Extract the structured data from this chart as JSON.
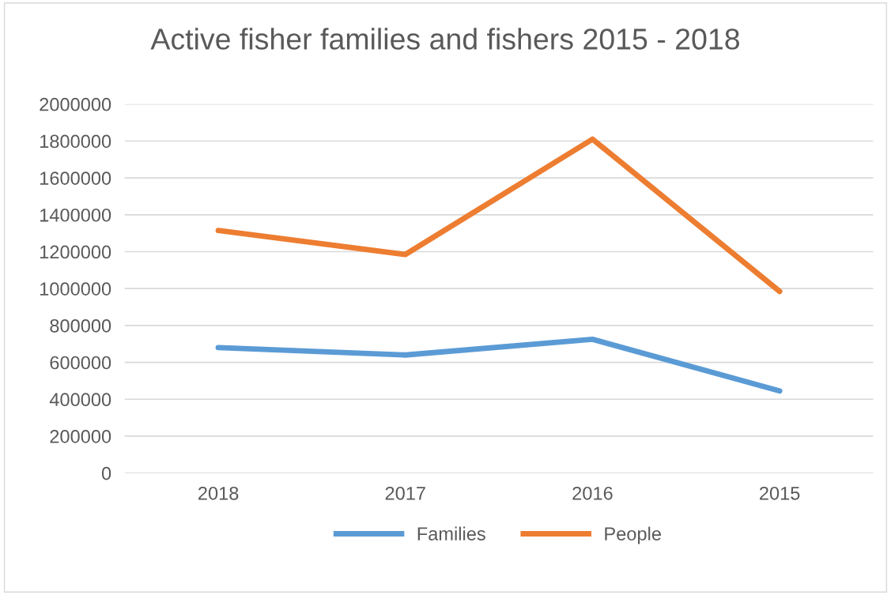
{
  "chart_data": {
    "type": "line",
    "title": "Active fisher families and fishers 2015 - 2018",
    "categories": [
      "2018",
      "2017",
      "2016",
      "2015"
    ],
    "series": [
      {
        "name": "Families",
        "color": "#5b9bd5",
        "values": [
          680000,
          640000,
          725000,
          445000
        ]
      },
      {
        "name": "People",
        "color": "#ed7d31",
        "values": [
          1315000,
          1185000,
          1810000,
          985000
        ]
      }
    ],
    "ylim": [
      0,
      2000000
    ],
    "yticks": [
      0,
      200000,
      400000,
      600000,
      800000,
      1000000,
      1200000,
      1400000,
      1600000,
      1800000,
      2000000
    ],
    "grid": "y",
    "legend": "bottom",
    "marker": "none",
    "line_style": "solid"
  }
}
